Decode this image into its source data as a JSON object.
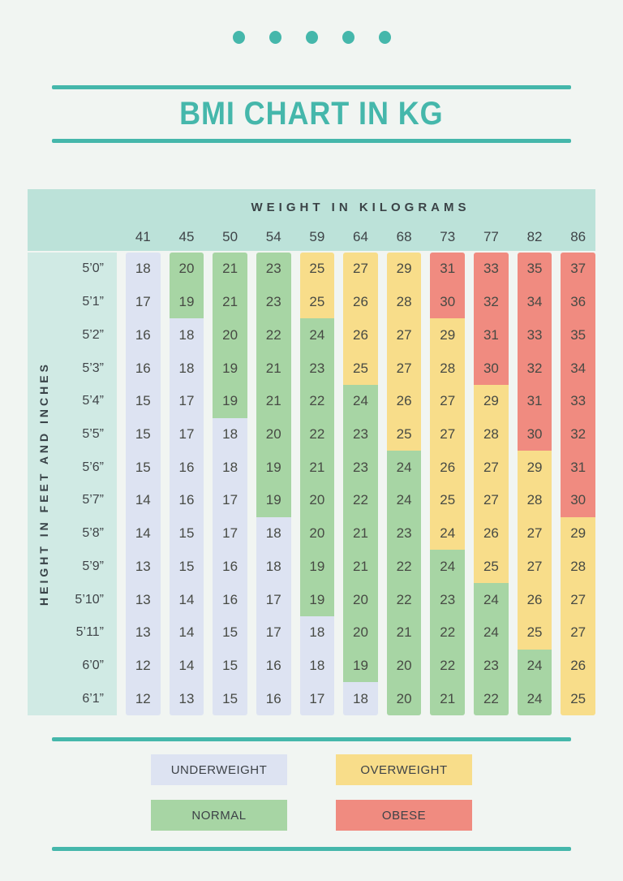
{
  "title": "BMI CHART IN KG",
  "colors": {
    "accent": "#45b7ab",
    "page_bg": "#f1f5f2",
    "header_bg": "#bce2d9",
    "label_bg": "#d0eae4",
    "text_dark": "#44484b",
    "underweight": "#dde3f2",
    "normal": "#a7d5a4",
    "overweight": "#f8dd8a",
    "obese": "#f08b80"
  },
  "legend": [
    {
      "label": "UNDERWEIGHT",
      "category": "underweight"
    },
    {
      "label": "OVERWEIGHT",
      "category": "overweight"
    },
    {
      "label": "NORMAL",
      "category": "normal"
    },
    {
      "label": "OBESE",
      "category": "obese"
    }
  ],
  "chart_data": {
    "type": "table",
    "title": "BMI CHART IN KG",
    "column_header": "WEIGHT IN KILOGRAMS",
    "row_header": "HEIGHT IN FEET AND INCHES",
    "columns": [
      "41",
      "45",
      "50",
      "54",
      "59",
      "64",
      "68",
      "73",
      "77",
      "82",
      "86"
    ],
    "category_map": {
      "U": "underweight",
      "N": "normal",
      "O": "overweight",
      "B": "obese"
    },
    "rows": [
      {
        "label": "5’0”",
        "values": [
          18,
          20,
          21,
          23,
          25,
          27,
          29,
          31,
          33,
          35,
          37
        ],
        "cats": "UNNNOOOBBBB"
      },
      {
        "label": "5’1”",
        "values": [
          17,
          19,
          21,
          23,
          25,
          26,
          28,
          30,
          32,
          34,
          36
        ],
        "cats": "UNNNOOOBBBB"
      },
      {
        "label": "5’2”",
        "values": [
          16,
          18,
          20,
          22,
          24,
          26,
          27,
          29,
          31,
          33,
          35
        ],
        "cats": "UUNNNOOOBBB"
      },
      {
        "label": "5’3”",
        "values": [
          16,
          18,
          19,
          21,
          23,
          25,
          27,
          28,
          30,
          32,
          34
        ],
        "cats": "UUNNNOOOBBB"
      },
      {
        "label": "5’4”",
        "values": [
          15,
          17,
          19,
          21,
          22,
          24,
          26,
          27,
          29,
          31,
          33
        ],
        "cats": "UUNNNNOOOBB"
      },
      {
        "label": "5’5”",
        "values": [
          15,
          17,
          18,
          20,
          22,
          23,
          25,
          27,
          28,
          30,
          32
        ],
        "cats": "UUUNNNOOOBB"
      },
      {
        "label": "5’6”",
        "values": [
          15,
          16,
          18,
          19,
          21,
          23,
          24,
          26,
          27,
          29,
          31
        ],
        "cats": "UUUNNNNOOOB"
      },
      {
        "label": "5’7”",
        "values": [
          14,
          16,
          17,
          19,
          20,
          22,
          24,
          25,
          27,
          28,
          30
        ],
        "cats": "UUUNNNNOOOB"
      },
      {
        "label": "5’8”",
        "values": [
          14,
          15,
          17,
          18,
          20,
          21,
          23,
          24,
          26,
          27,
          29
        ],
        "cats": "UUUUNNNOOOO"
      },
      {
        "label": "5’9”",
        "values": [
          13,
          15,
          16,
          18,
          19,
          21,
          22,
          24,
          25,
          27,
          28
        ],
        "cats": "UUUUNNNNOOO"
      },
      {
        "label": "5’10”",
        "values": [
          13,
          14,
          16,
          17,
          19,
          20,
          22,
          23,
          24,
          26,
          27
        ],
        "cats": "UUUUNNNNNOO"
      },
      {
        "label": "5’11”",
        "values": [
          13,
          14,
          15,
          17,
          18,
          20,
          21,
          22,
          24,
          25,
          27
        ],
        "cats": "UUUUUNNNNOO"
      },
      {
        "label": "6’0”",
        "values": [
          12,
          14,
          15,
          16,
          18,
          19,
          20,
          22,
          23,
          24,
          26
        ],
        "cats": "UUUUUNNNNNO"
      },
      {
        "label": "6’1”",
        "values": [
          12,
          13,
          15,
          16,
          17,
          18,
          20,
          21,
          22,
          24,
          25
        ],
        "cats": "UUUUUUNNNNO"
      }
    ],
    "legend_labels": [
      "UNDERWEIGHT",
      "OVERWEIGHT",
      "NORMAL",
      "OBESE"
    ]
  }
}
